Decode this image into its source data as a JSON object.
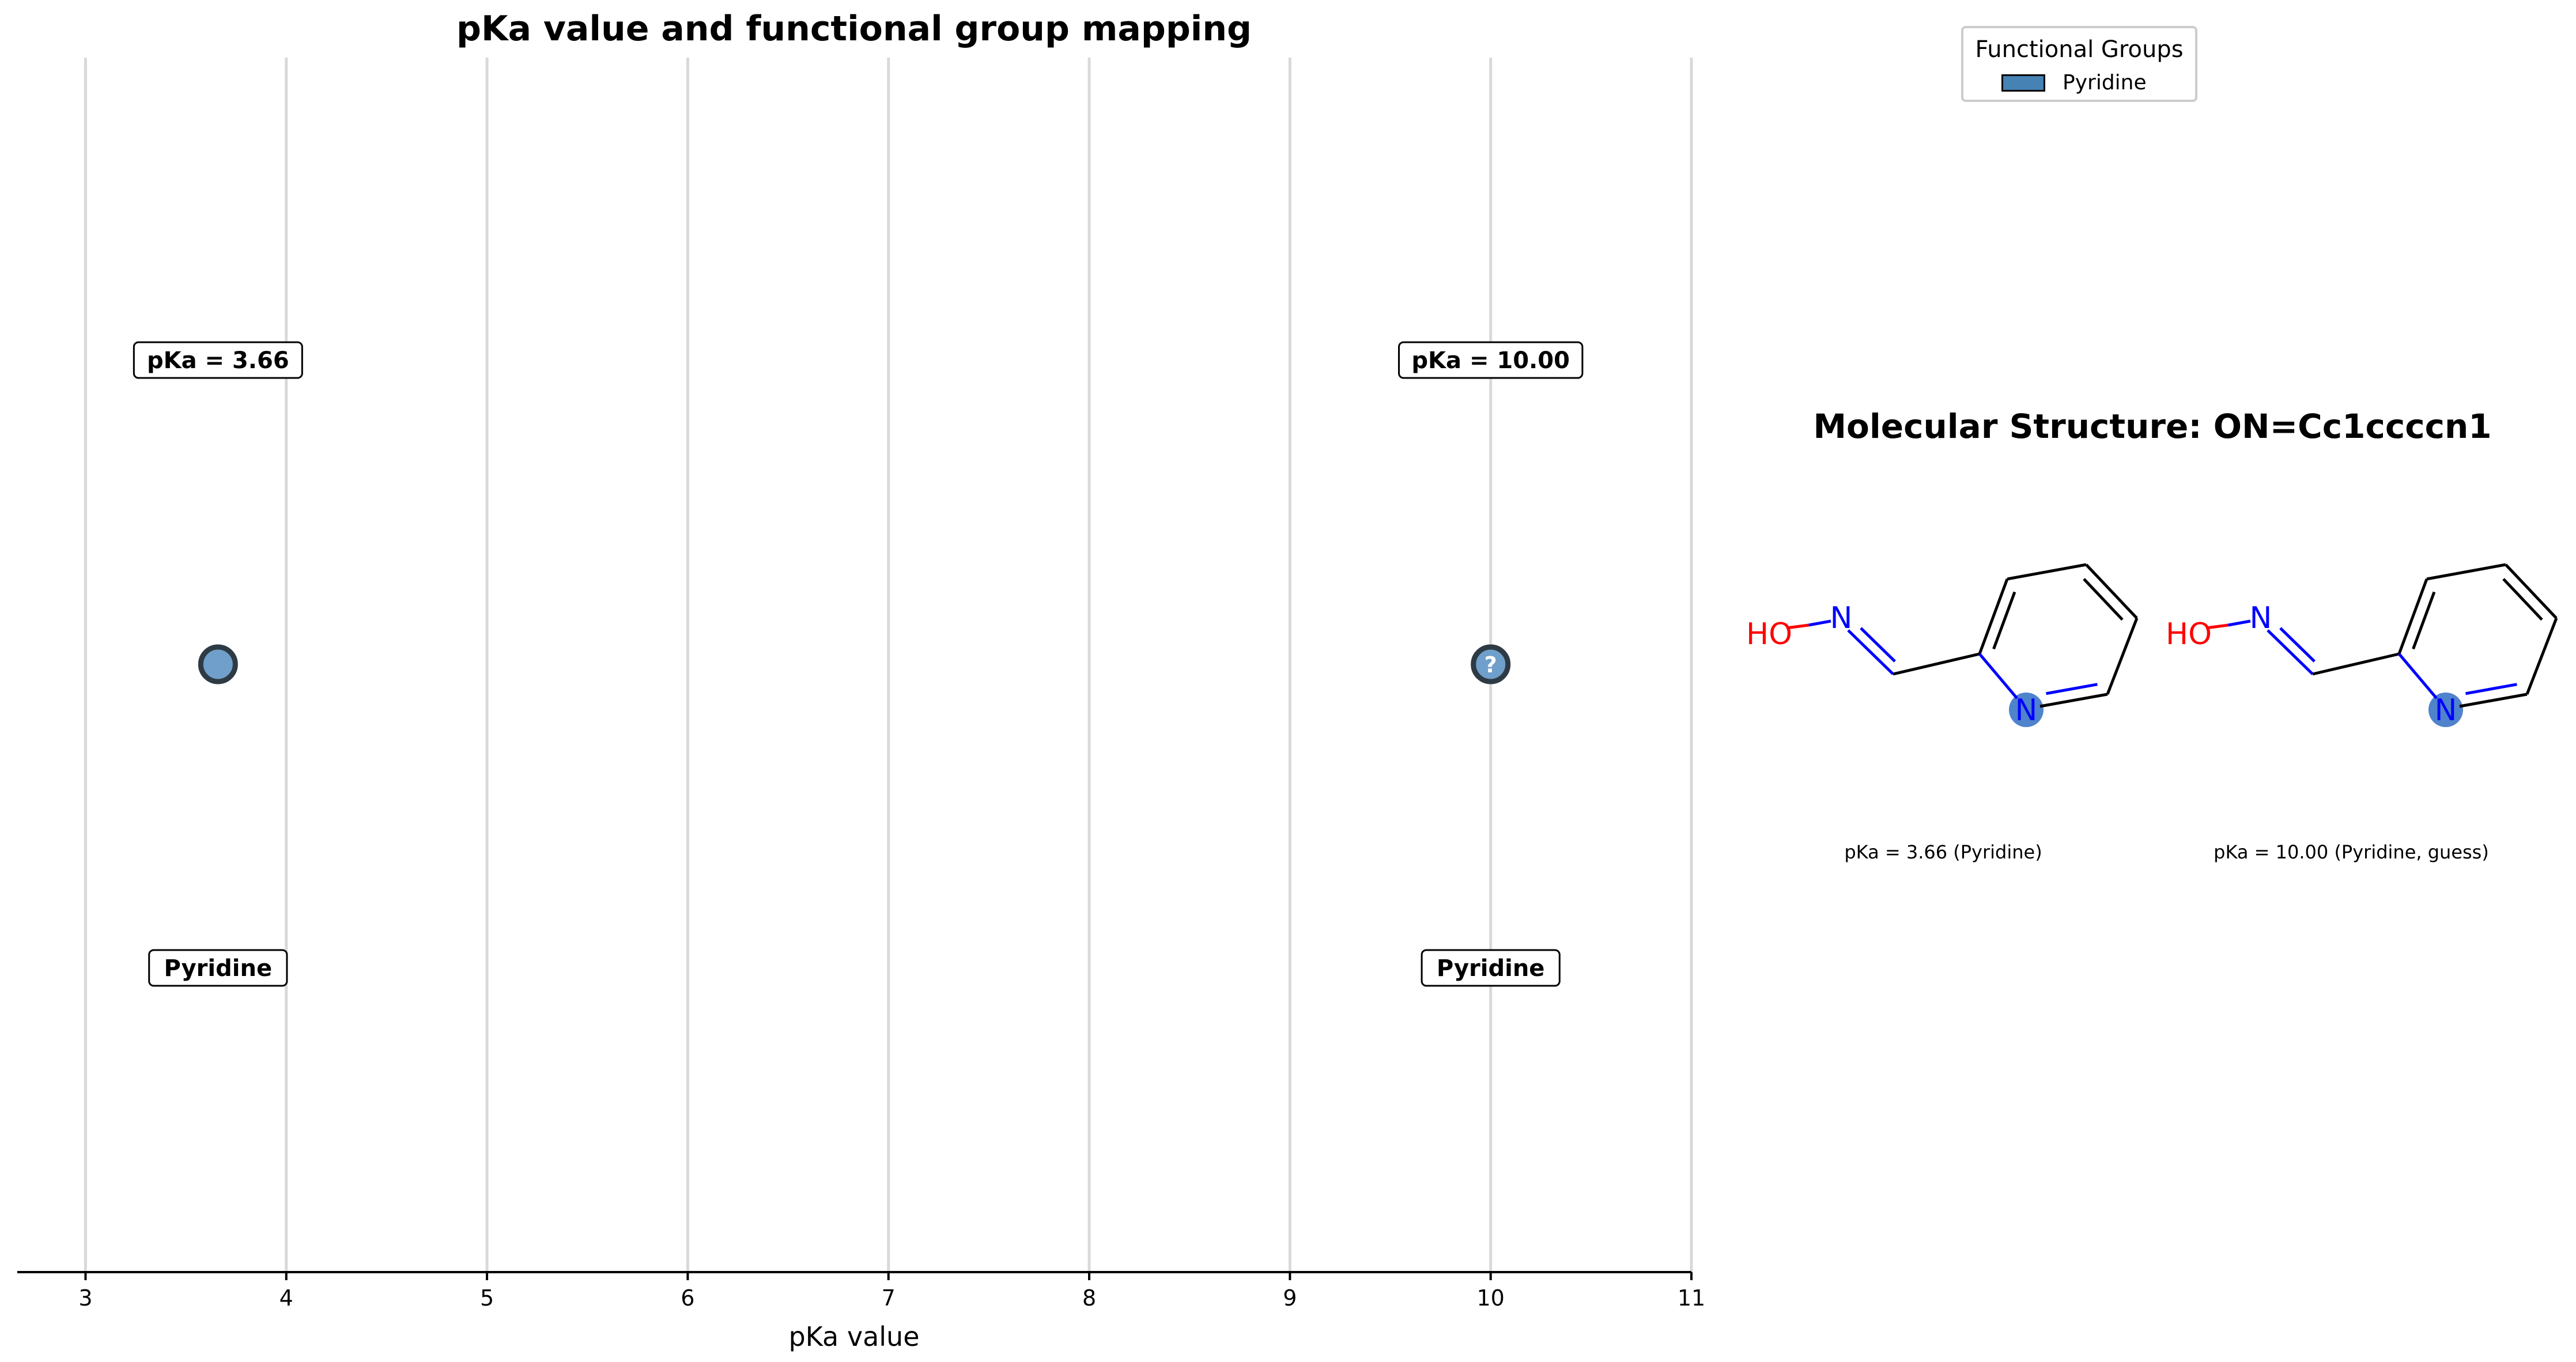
{
  "chart_data": {
    "type": "scatter",
    "title": "pKa value and functional group mapping",
    "xlabel": "pKa value",
    "xlim": [
      2.66,
      11
    ],
    "xticks": [
      3,
      4,
      5,
      6,
      7,
      8,
      9,
      10,
      11
    ],
    "grid": "vertical",
    "points": [
      {
        "x": 3.66,
        "pka_label": "pKa = 3.66",
        "group": "Pyridine",
        "guess": false
      },
      {
        "x": 10.0,
        "pka_label": "pKa = 10.00",
        "group": "Pyridine",
        "guess": true,
        "marker_text": "?"
      }
    ],
    "point_color": "#6f9fca",
    "edge_color": "#2e3a44",
    "legend": {
      "title": "Functional Groups",
      "placement": "top-right",
      "entries": [
        {
          "name": "Pyridine",
          "color": "#4682b4"
        }
      ]
    }
  },
  "structure": {
    "title": "Molecular Structure: ON=Cc1ccccn1",
    "atom_labels": {
      "hydroxyl": "HO",
      "nitrogen": "N"
    },
    "colors": {
      "oxygen": "#ff0000",
      "nitrogen": "#0000ff",
      "highlight": "#4f83cc",
      "bond": "#000000"
    },
    "captions": [
      "pKa = 3.66 (Pyridine)",
      "pKa = 10.00 (Pyridine, guess)"
    ]
  }
}
